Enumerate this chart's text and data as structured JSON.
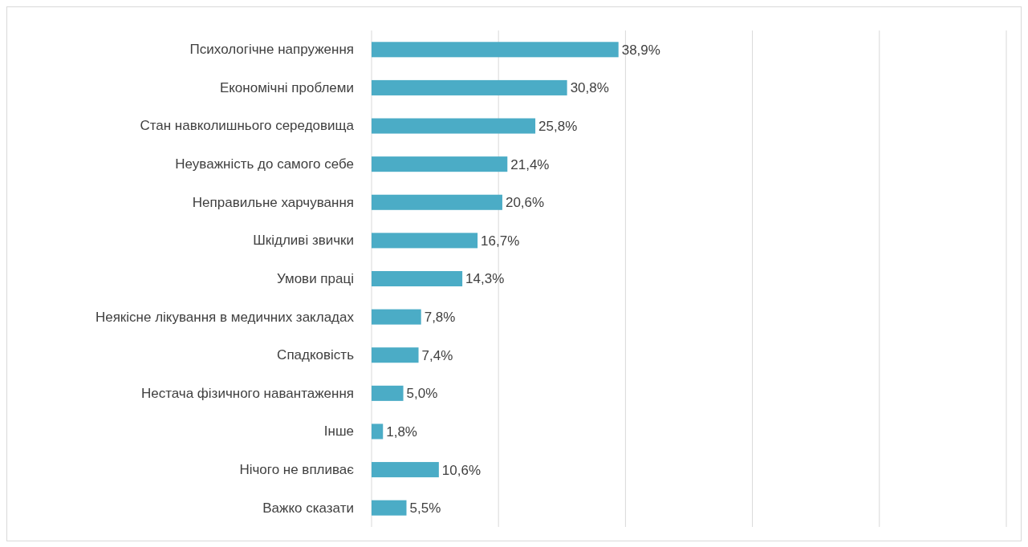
{
  "chart_data": {
    "type": "bar",
    "orientation": "horizontal",
    "categories": [
      "Психологічне напруження",
      "Економічні проблеми",
      "Стан навколишнього середовища",
      "Неуважність до самого себе",
      "Неправильне харчування",
      "Шкідливі звички",
      "Умови праці",
      "Неякісне лікування в медичних закладах",
      "Спадковість",
      "Нестача фізичного навантаження",
      "Інше",
      "Нічого не впливає",
      "Важко сказати"
    ],
    "values": [
      38.9,
      30.8,
      25.8,
      21.4,
      20.6,
      16.7,
      14.3,
      7.8,
      7.4,
      5.0,
      1.8,
      10.6,
      5.5
    ],
    "value_labels": [
      "38,9%",
      "30,8%",
      "25,8%",
      "21,4%",
      "20,6%",
      "16,7%",
      "14,3%",
      "7,8%",
      "7,4%",
      "5,0%",
      "1,8%",
      "10,6%",
      "5,5%"
    ],
    "color": "#4bacc6",
    "xlim": [
      0,
      100
    ],
    "xticks": [
      {
        "value": 0,
        "label": null
      },
      {
        "value": 20,
        "label": null
      },
      {
        "value": 40,
        "label": null
      },
      {
        "value": 60,
        "label": null
      },
      {
        "value": 80,
        "label": null
      },
      {
        "value": 100,
        "label": null
      }
    ],
    "grid": "x",
    "tick_labels": "y"
  }
}
